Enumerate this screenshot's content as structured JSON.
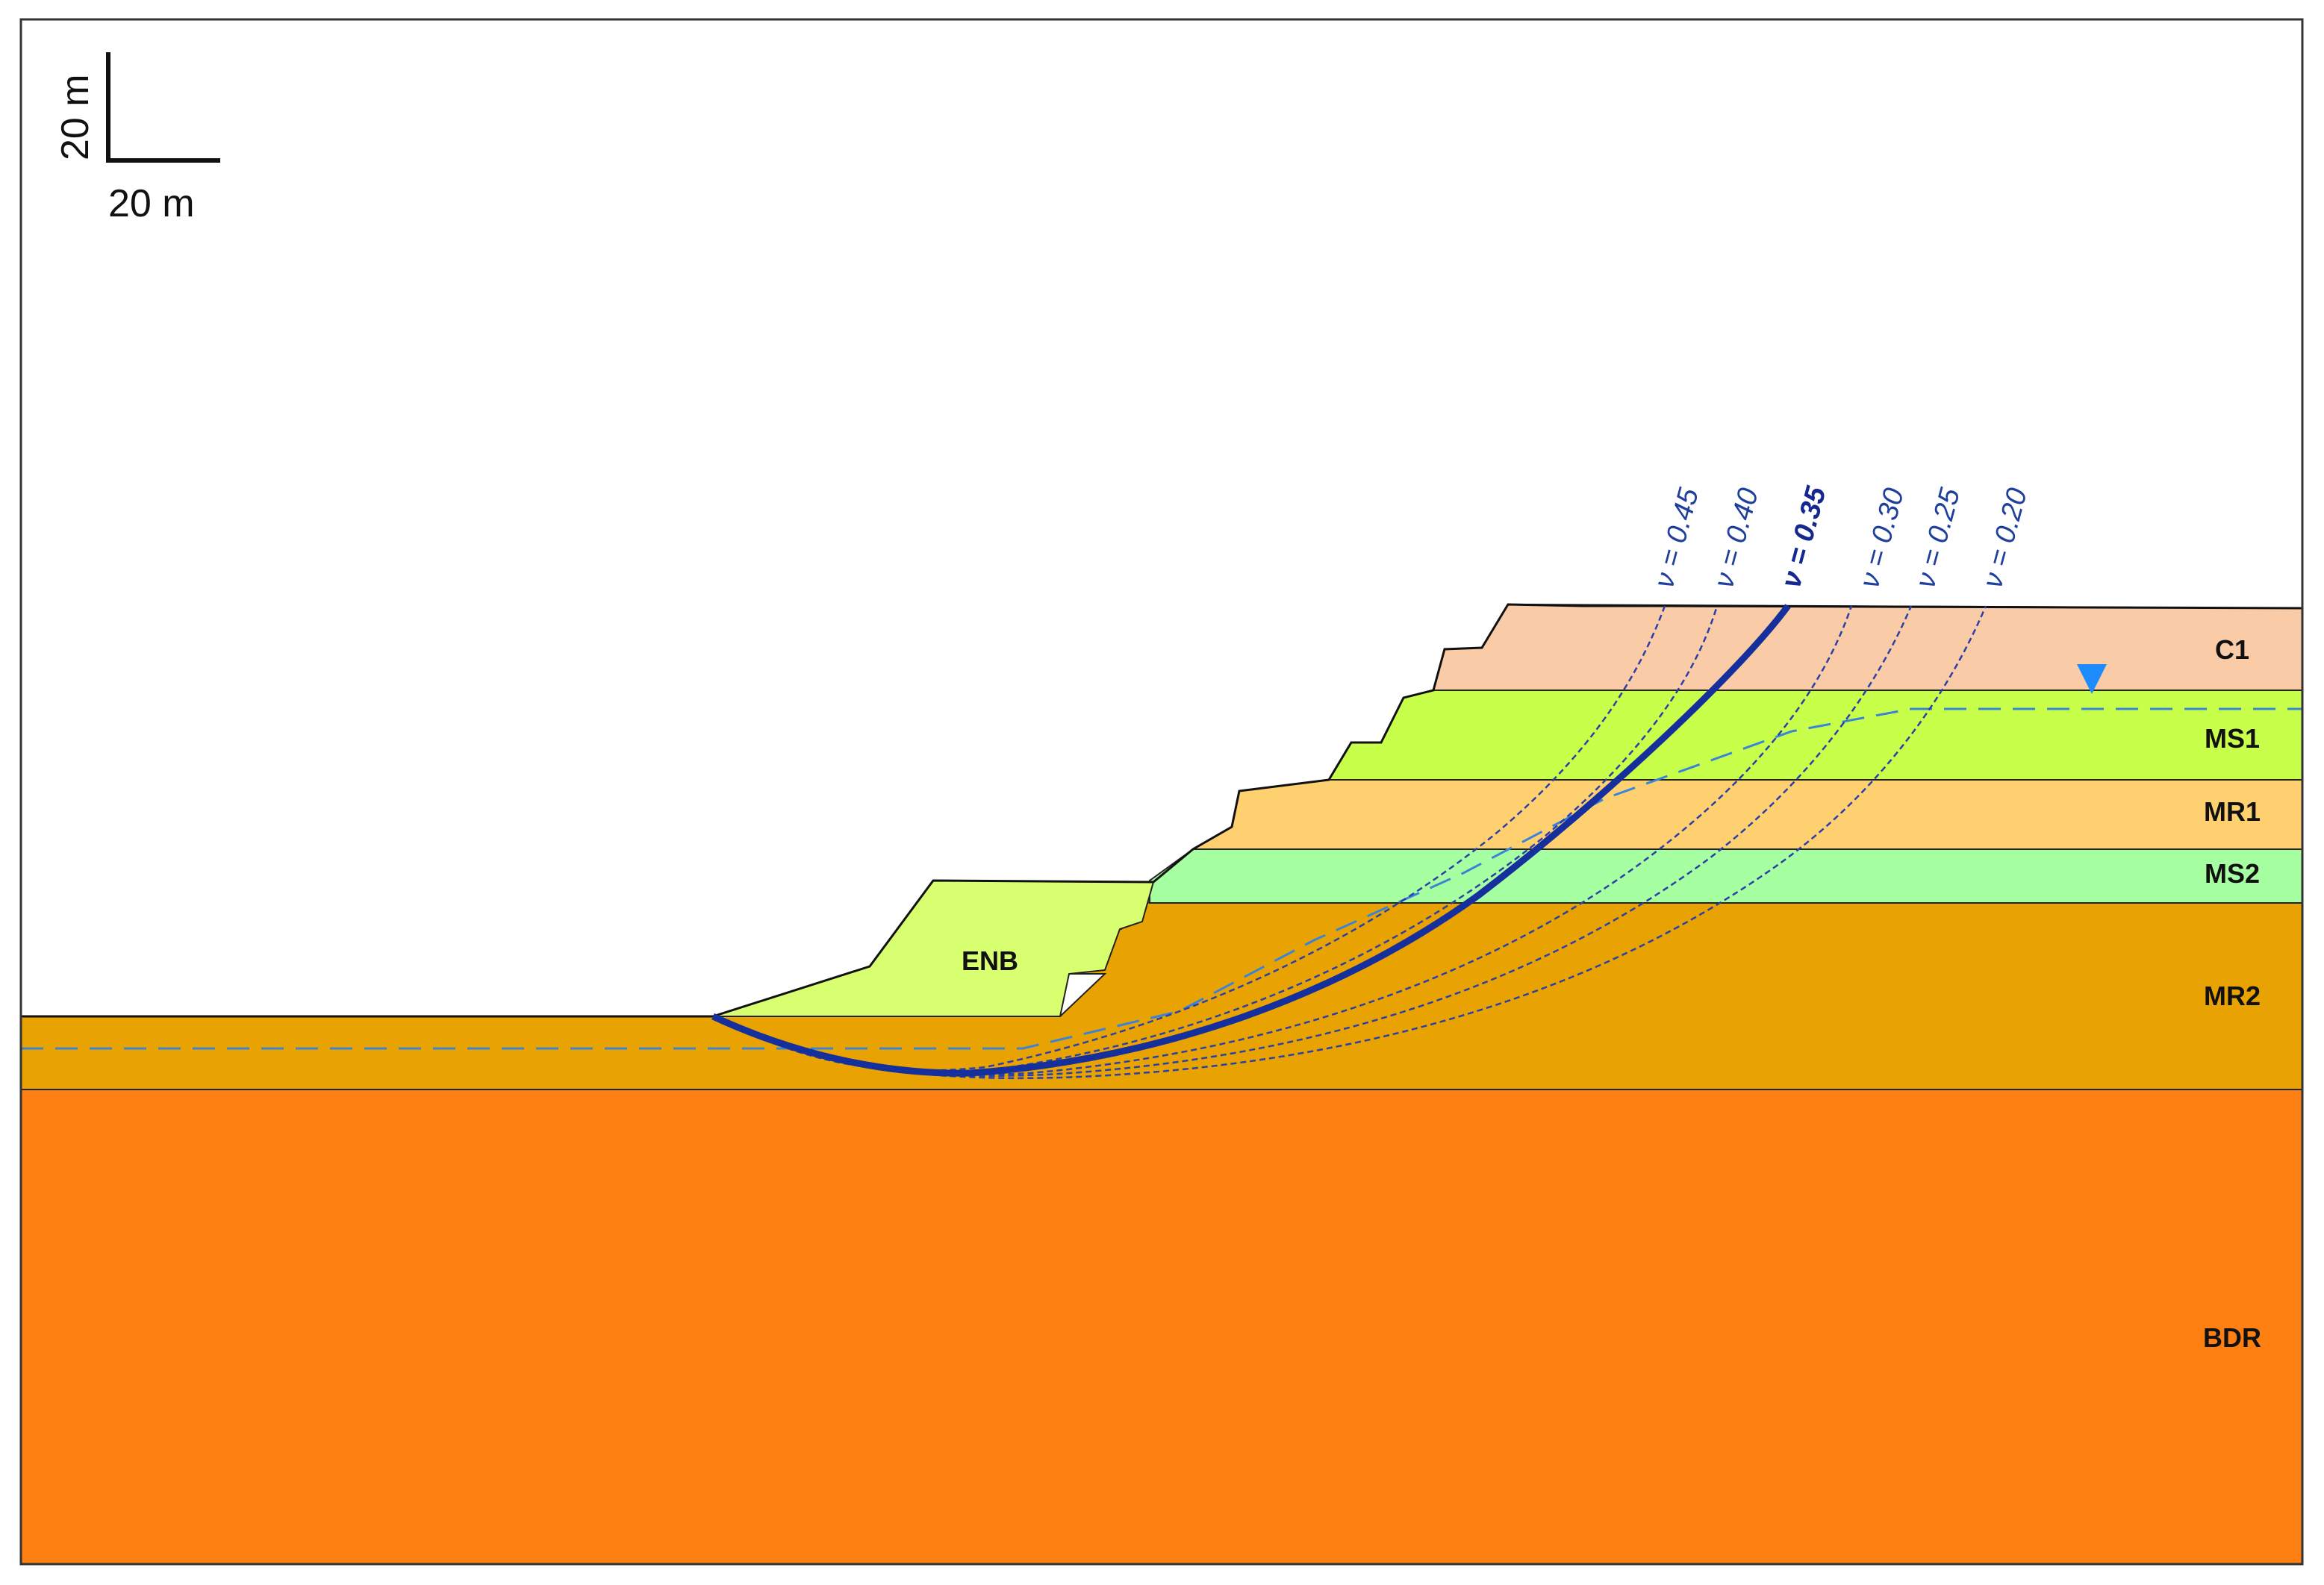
{
  "colors": {
    "C1": "#f9cba7",
    "MS1": "#c8ff4a",
    "MR1": "#ffd070",
    "MS2": "#a6ffa0",
    "MR2": "#e8a302",
    "BDR": "#ff8012",
    "ENB": "#d8ff70",
    "surface_main": "#152f9c",
    "surface_alt": "#2a3fa8",
    "water_table": "#3a84d8",
    "water_marker": "#1c8cff"
  },
  "scale_bar": {
    "vertical_label": "20 m",
    "horizontal_label": "20 m"
  },
  "layers": [
    {
      "id": "C1",
      "label": "C1"
    },
    {
      "id": "MS1",
      "label": "MS1"
    },
    {
      "id": "MR1",
      "label": "MR1"
    },
    {
      "id": "MS2",
      "label": "MS2"
    },
    {
      "id": "MR2",
      "label": "MR2"
    },
    {
      "id": "BDR",
      "label": "BDR"
    },
    {
      "id": "ENB",
      "label": "ENB"
    }
  ],
  "slip_surfaces": [
    {
      "label": "ν = 0.45",
      "nu": 0.45,
      "critical": false
    },
    {
      "label": "ν = 0.40",
      "nu": 0.4,
      "critical": false
    },
    {
      "label": "ν = 0.35",
      "nu": 0.35,
      "critical": true
    },
    {
      "label": "ν = 0.30",
      "nu": 0.3,
      "critical": false
    },
    {
      "label": "ν = 0.25",
      "nu": 0.25,
      "critical": false
    },
    {
      "label": "ν = 0.20",
      "nu": 0.2,
      "critical": false
    }
  ]
}
